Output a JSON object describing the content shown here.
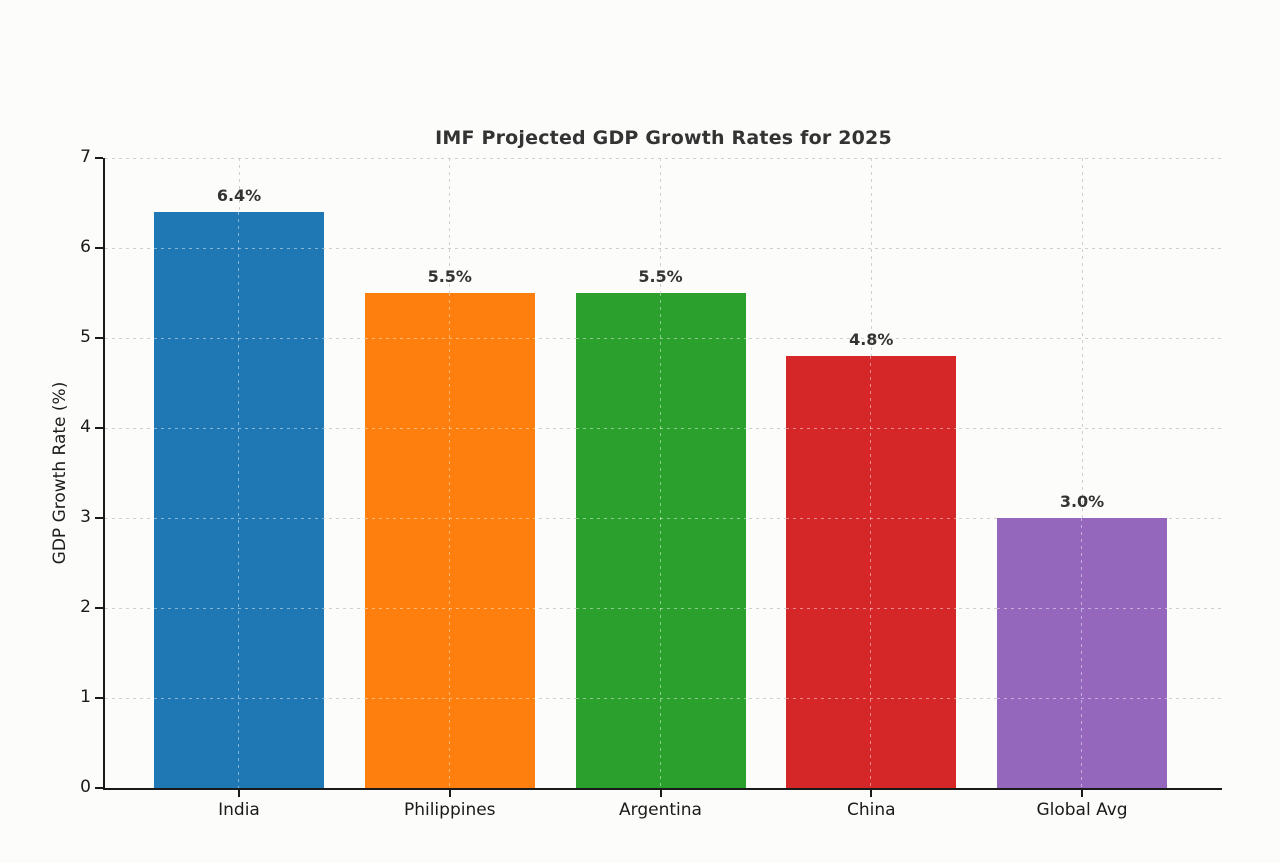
{
  "chart_data": {
    "type": "bar",
    "title": "IMF Projected GDP Growth Rates for 2025",
    "xlabel": "",
    "ylabel": "GDP Growth Rate (%)",
    "categories": [
      "India",
      "Philippines",
      "Argentina",
      "China",
      "Global Avg"
    ],
    "values": [
      6.4,
      5.5,
      5.5,
      4.8,
      3.0
    ],
    "value_labels": [
      "6.4%",
      "5.5%",
      "5.5%",
      "4.8%",
      "3.0%"
    ],
    "bar_colors": [
      "#1f77b4",
      "#ff7f0e",
      "#2ca02c",
      "#d62728",
      "#9467bd"
    ],
    "yticks": [
      0,
      1,
      2,
      3,
      4,
      5,
      6,
      7
    ],
    "ylim": [
      0,
      7
    ],
    "grid": "dashed, horizontal and vertical at bar centers",
    "legend": "none"
  },
  "colors": {
    "background": "#fcfcfa",
    "spine": "#1a1a1a",
    "grid": "#cfcfcf",
    "title_text": "#333333",
    "tick_text": "#1a1a1a",
    "value_label_text": "#333333"
  }
}
